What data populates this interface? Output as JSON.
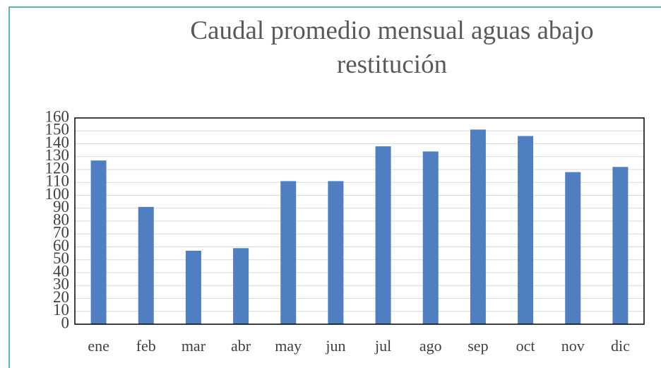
{
  "chart_data": {
    "type": "bar",
    "title": "Caudal promedio mensual aguas abajo restitución",
    "categories": [
      "ene",
      "feb",
      "mar",
      "abr",
      "may",
      "jun",
      "jul",
      "ago",
      "sep",
      "oct",
      "nov",
      "dic"
    ],
    "values": [
      127,
      91,
      57,
      59,
      111,
      111,
      138,
      134,
      151,
      146,
      118,
      122
    ],
    "color": "#4f7fc0",
    "ylim": [
      0,
      160
    ],
    "yticks": [
      0,
      10,
      20,
      30,
      40,
      50,
      60,
      70,
      80,
      90,
      100,
      110,
      120,
      130,
      140,
      150,
      160
    ],
    "grid": true
  }
}
